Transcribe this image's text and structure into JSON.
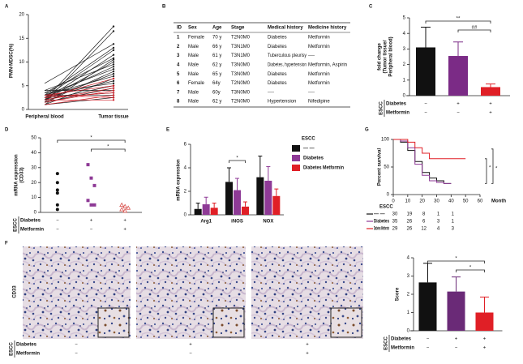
{
  "chart_data": [
    {
      "panel": "A",
      "type": "line",
      "ylabel": "PMN-MDSC(%)",
      "categories": [
        "Peripheral blood",
        "Tumor tissue"
      ],
      "ylim": [
        0,
        20
      ],
      "yticks": [
        0,
        5,
        10,
        15,
        20
      ],
      "series": [
        {
          "color": "#222222",
          "values": [
            2,
            17.5
          ]
        },
        {
          "color": "#222222",
          "values": [
            1.5,
            16.5
          ]
        },
        {
          "color": "#222222",
          "values": [
            5.5,
            13.8
          ]
        },
        {
          "color": "#222222",
          "values": [
            3,
            13
          ]
        },
        {
          "color": "#222222",
          "values": [
            2.5,
            12.5
          ]
        },
        {
          "color": "#222222",
          "values": [
            2,
            11.5
          ]
        },
        {
          "color": "#222222",
          "values": [
            3.5,
            10.8
          ]
        },
        {
          "color": "#222222",
          "values": [
            1,
            10.5
          ]
        },
        {
          "color": "#222222",
          "values": [
            2,
            10
          ]
        },
        {
          "color": "#222222",
          "values": [
            4,
            9.5
          ]
        },
        {
          "color": "#222222",
          "values": [
            2.5,
            9
          ]
        },
        {
          "color": "#222222",
          "values": [
            3,
            8.5
          ]
        },
        {
          "color": "#222222",
          "values": [
            1.5,
            8
          ]
        },
        {
          "color": "#222222",
          "values": [
            2,
            7.5
          ]
        },
        {
          "color": "#222222",
          "values": [
            3,
            7
          ]
        },
        {
          "color": "#222222",
          "values": [
            1,
            6.5
          ]
        },
        {
          "color": "#222222",
          "values": [
            2.5,
            6
          ]
        },
        {
          "color": "#222222",
          "values": [
            3.5,
            5.5
          ]
        },
        {
          "color": "#222222",
          "values": [
            2,
            5
          ]
        },
        {
          "color": "#222222",
          "values": [
            1.5,
            4.5
          ]
        },
        {
          "color": "#222222",
          "values": [
            4,
            4
          ]
        },
        {
          "color": "#222222",
          "values": [
            2.5,
            3.5
          ]
        },
        {
          "color": "#222222",
          "values": [
            3,
            3
          ]
        },
        {
          "color": "#222222",
          "values": [
            1,
            2.5
          ]
        },
        {
          "color": "#d0202a",
          "values": [
            2.5,
            6.5
          ]
        },
        {
          "color": "#d0202a",
          "values": [
            3,
            5
          ]
        },
        {
          "color": "#d0202a",
          "values": [
            2,
            4.5
          ]
        },
        {
          "color": "#d0202a",
          "values": [
            1.5,
            4
          ]
        },
        {
          "color": "#d0202a",
          "values": [
            2.5,
            3.5
          ]
        },
        {
          "color": "#d0202a",
          "values": [
            1,
            3
          ]
        },
        {
          "color": "#d0202a",
          "values": [
            3,
            2.5
          ]
        },
        {
          "color": "#d0202a",
          "values": [
            2,
            2
          ]
        }
      ]
    },
    {
      "panel": "C",
      "type": "bar",
      "ylabel": [
        "fold change",
        "(Tumor tissue/",
        "Peripheral blood)"
      ],
      "values": [
        3.1,
        2.55,
        0.55
      ],
      "errors": [
        1.3,
        0.9,
        0.2
      ],
      "colors": [
        "#111111",
        "#7b2b86",
        "#e01f26"
      ],
      "ylim": [
        0,
        5
      ],
      "yticks": [
        0,
        1,
        2,
        3,
        4,
        5
      ],
      "annotations": [
        {
          "text": "**",
          "from": 0,
          "to": 2
        },
        {
          "text": "##",
          "from": 1,
          "to": 2
        }
      ],
      "groups": {
        "title": "ESCC",
        "rows": [
          {
            "label": "Diabetes",
            "marks": [
              "−",
              "+",
              "+"
            ]
          },
          {
            "label": "Metformin",
            "marks": [
              "−",
              "−",
              "+"
            ]
          }
        ]
      }
    },
    {
      "panel": "D",
      "type": "scatter",
      "ylabel": [
        "mRNA expression",
        "(CD33)"
      ],
      "ylim": [
        0,
        50
      ],
      "yticks": [
        0,
        10,
        20,
        30,
        40,
        50
      ],
      "series": [
        {
          "color": "#111111",
          "marker": "circle",
          "values": [
            26,
            20,
            15,
            13,
            5,
            2
          ]
        },
        {
          "color": "#8e3a96",
          "marker": "square",
          "values": [
            32,
            23,
            18,
            8,
            5,
            5
          ]
        },
        {
          "color": "#d9534f",
          "marker": "triangle",
          "values": [
            5,
            4,
            3,
            2,
            1
          ]
        }
      ],
      "annotations": [
        {
          "text": "*",
          "from": 0,
          "to": 2
        },
        {
          "text": "*",
          "from": 1,
          "to": 2
        }
      ],
      "groups": {
        "title": "ESCC",
        "rows": [
          {
            "label": "Diabetes",
            "marks": [
              "−",
              "+",
              "+"
            ]
          },
          {
            "label": "Metformin",
            "marks": [
              "−",
              "−",
              "+"
            ]
          }
        ]
      }
    },
    {
      "panel": "E",
      "type": "grouped_bar",
      "ylabel": "mRNA expression",
      "categories": [
        "Arg1",
        "iNOS",
        "NOX"
      ],
      "ylim": [
        0,
        6
      ],
      "yticks": [
        0,
        2,
        4,
        6
      ],
      "legend_title": "ESCC",
      "series": [
        {
          "name": "— —",
          "color": "#111111",
          "values": [
            0.5,
            2.8,
            3.2
          ],
          "errors": [
            0.5,
            1.2,
            1.8
          ]
        },
        {
          "name": "Diabetes",
          "color": "#8e3a96",
          "values": [
            0.9,
            2.1,
            2.9
          ],
          "errors": [
            0.6,
            1.0,
            1.2
          ]
        },
        {
          "name": "Diabetes Metformin",
          "color": "#e01f26",
          "values": [
            0.6,
            0.7,
            1.6
          ],
          "errors": [
            0.4,
            0.4,
            0.6
          ]
        }
      ],
      "annotations": [
        {
          "text": "*",
          "category": 1
        }
      ]
    },
    {
      "panel": "G",
      "type": "survival",
      "ylabel": "Percent survival",
      "xlabel": "Month",
      "xlim": [
        0,
        60
      ],
      "xticks": [
        0,
        10,
        20,
        30,
        40,
        50,
        60
      ],
      "ylim": [
        0,
        100
      ],
      "yticks": [
        0,
        50,
        100
      ],
      "risk_title": "ESCC",
      "series": [
        {
          "name": "— —",
          "color": "#111111",
          "x": [
            0,
            5,
            10,
            15,
            20,
            25,
            30,
            35,
            40
          ],
          "values": [
            100,
            95,
            80,
            60,
            40,
            30,
            25,
            20,
            20
          ],
          "at_risk": [
            30,
            19,
            8,
            1,
            1
          ]
        },
        {
          "name": "Diabetes",
          "color": "#8e3a96",
          "x": [
            0,
            5,
            10,
            15,
            20,
            25,
            30,
            35,
            40
          ],
          "values": [
            100,
            97,
            85,
            55,
            35,
            25,
            22,
            20,
            20
          ],
          "at_risk": [
            35,
            26,
            6,
            3,
            1
          ]
        },
        {
          "name": "Diabetes Metformin",
          "color": "#e01f26",
          "x": [
            0,
            10,
            15,
            20,
            25,
            50
          ],
          "values": [
            100,
            95,
            85,
            75,
            65,
            65
          ],
          "at_risk": [
            29,
            26,
            12,
            4,
            3
          ]
        }
      ],
      "annotations": [
        {
          "text": "*"
        },
        {
          "text": "*"
        }
      ]
    },
    {
      "panel": "F",
      "type": "bar",
      "ylabel": "Score",
      "values": [
        2.65,
        2.15,
        1.0
      ],
      "errors": [
        1.05,
        0.8,
        0.85
      ],
      "colors": [
        "#111111",
        "#6a2a77",
        "#e01f26"
      ],
      "ylim": [
        0,
        4
      ],
      "yticks": [
        0,
        1,
        2,
        3,
        4
      ],
      "annotations": [
        {
          "text": "*",
          "from": 0,
          "to": 2
        },
        {
          "text": "*",
          "from": 1,
          "to": 2
        }
      ],
      "groups": {
        "title": "ESCC",
        "rows": [
          {
            "label": "Diabetes",
            "marks": [
              "−",
              "+",
              "+"
            ]
          },
          {
            "label": "Metformin",
            "marks": [
              "−",
              "−",
              "+"
            ]
          }
        ]
      }
    }
  ],
  "table": {
    "panel": "B",
    "columns": [
      "ID",
      "Sex",
      "Age",
      "Stage",
      "Medical history",
      "Medicine history"
    ],
    "rows": [
      [
        "1",
        "Female",
        "70 y",
        "T2N0M0",
        "Diabetes",
        "Metformin"
      ],
      [
        "2",
        "Male",
        "66 y",
        "T3N1M0",
        "Diabetes",
        "Metformin"
      ],
      [
        "3",
        "Male",
        "61 y",
        "T3N1M0",
        "Tuberculous pleurisy",
        "----"
      ],
      [
        "4",
        "Male",
        "62 y",
        "T3N0M0",
        "Diabetes, hypertension",
        "Metformin, Aspirin"
      ],
      [
        "5",
        "Male",
        "65 y",
        "T3N0M0",
        "Diabetes",
        "Metformin"
      ],
      [
        "6",
        "Female",
        "64y",
        "T2N0M0",
        "Diabetes",
        "Metformin"
      ],
      [
        "7",
        "Male",
        "60y",
        "T3N0M0",
        "----",
        "----"
      ],
      [
        "8",
        "Male",
        "62 y",
        "T2N0M0",
        "Hypertension",
        "Nifedipine"
      ]
    ],
    "row_colors": [
      "#7a2f8f",
      "#7a2f8f",
      "#111111",
      "#7a2f8f",
      "#7a2f8f",
      "#7a2f8f",
      "#111111",
      "#111111"
    ]
  },
  "micrographs": {
    "panel": "F",
    "stain": "CD33",
    "groups": {
      "title": "ESCC",
      "rows": [
        {
          "label": "Diabetes",
          "marks": [
            "−",
            "+",
            "+"
          ]
        },
        {
          "label": "Metformin",
          "marks": [
            "−",
            "−",
            "+"
          ]
        }
      ]
    }
  }
}
